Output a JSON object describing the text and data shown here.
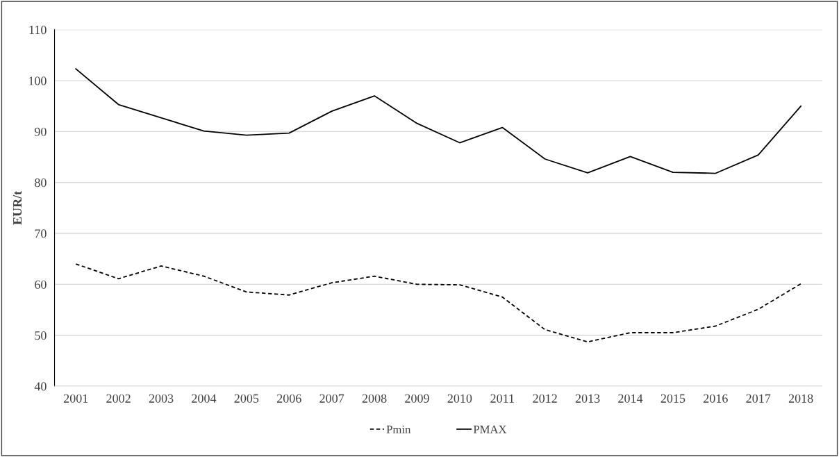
{
  "chart_data": {
    "type": "line",
    "ylabel": "EUR/t",
    "categories": [
      "2001",
      "2002",
      "2003",
      "2004",
      "2005",
      "2006",
      "2007",
      "2008",
      "2009",
      "2010",
      "2011",
      "2012",
      "2013",
      "2014",
      "2015",
      "2016",
      "2017",
      "2018"
    ],
    "series": [
      {
        "name": "Pmin",
        "color": "#000000",
        "line_style": "dashed",
        "values": [
          64.0,
          61.1,
          63.6,
          61.6,
          58.5,
          57.9,
          60.3,
          61.6,
          60.0,
          59.9,
          57.5,
          51.1,
          48.7,
          50.5,
          50.5,
          51.8,
          55.1,
          60.1
        ]
      },
      {
        "name": "PMAX",
        "color": "#000000",
        "line_style": "solid",
        "values": [
          102.3,
          95.3,
          92.7,
          90.1,
          89.3,
          89.7,
          94.0,
          97.0,
          91.6,
          87.8,
          90.8,
          84.6,
          81.9,
          85.1,
          82.0,
          81.8,
          85.4,
          95.0
        ]
      }
    ],
    "ylim": [
      40,
      110
    ],
    "yticks": [
      40,
      50,
      60,
      70,
      80,
      90,
      100,
      110
    ],
    "grid": "y",
    "legend": "bottom",
    "marker": "none"
  }
}
